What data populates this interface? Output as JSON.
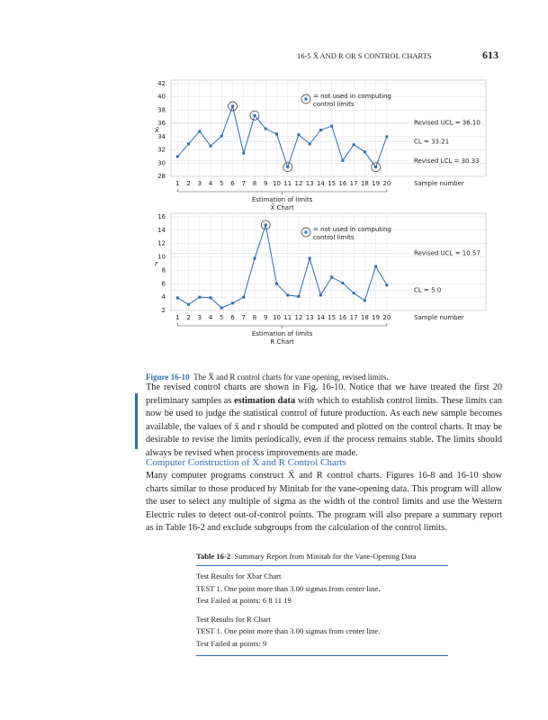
{
  "header": {
    "running_title": "16-5 X̄ AND R OR S CONTROL CHARTS",
    "page_number": "613"
  },
  "chart_data": [
    {
      "type": "line",
      "ylabel": "x̄",
      "xlabel": "Sample number",
      "color": "#2d6cb5",
      "x": [
        1,
        2,
        3,
        4,
        5,
        6,
        7,
        8,
        9,
        10,
        11,
        12,
        13,
        14,
        15,
        16,
        17,
        18,
        19,
        20
      ],
      "values": [
        31.0,
        32.9,
        34.8,
        32.6,
        34.1,
        38.6,
        31.5,
        37.2,
        35.2,
        34.4,
        29.4,
        34.3,
        32.9,
        35.0,
        35.6,
        30.4,
        32.8,
        31.7,
        29.4,
        34.0
      ],
      "xlim": [
        0.4,
        29
      ],
      "xticks": [
        1,
        2,
        3,
        4,
        5,
        6,
        7,
        8,
        9,
        10,
        11,
        12,
        13,
        14,
        15,
        16,
        17,
        18,
        19,
        20
      ],
      "ylim": [
        28,
        42
      ],
      "yticks": [
        28,
        30,
        32,
        34,
        36,
        38,
        40,
        42
      ],
      "grid": true,
      "circled_samples": [
        6,
        8,
        11,
        19
      ],
      "note": [
        "= not used in computing",
        "control limits"
      ],
      "control_limits": [
        {
          "label": "Revised UCL = 36.10",
          "value": 36.1
        },
        {
          "label": "CL = 33.21",
          "value": 33.21
        },
        {
          "label": "Revised LCL = 30.33",
          "value": 30.33
        }
      ],
      "span_label": "Estimation of limits",
      "chart_label": "X̄ Chart"
    },
    {
      "type": "line",
      "ylabel": "r",
      "xlabel": "Sample number",
      "color": "#2d6cb5",
      "x": [
        1,
        2,
        3,
        4,
        5,
        6,
        7,
        8,
        9,
        10,
        11,
        12,
        13,
        14,
        15,
        16,
        17,
        18,
        19,
        20
      ],
      "values": [
        3.9,
        2.9,
        4.0,
        3.9,
        2.4,
        3.1,
        4.0,
        9.8,
        14.8,
        6.0,
        4.3,
        4.1,
        9.8,
        4.3,
        7.0,
        6.1,
        4.6,
        3.5,
        8.6,
        5.8
      ],
      "xlim": [
        0.4,
        29
      ],
      "xticks": [
        1,
        2,
        3,
        4,
        5,
        6,
        7,
        8,
        9,
        10,
        11,
        12,
        13,
        14,
        15,
        16,
        17,
        18,
        19,
        20
      ],
      "ylim": [
        2,
        16
      ],
      "yticks": [
        2,
        4,
        6,
        8,
        10,
        12,
        14,
        16
      ],
      "grid": true,
      "circled_samples": [
        9
      ],
      "note": [
        "= not used in computing",
        "control limits"
      ],
      "control_limits": [
        {
          "label": "Revised UCL = 10.57",
          "value": 10.57
        },
        {
          "label": "CL = 5.0",
          "value": 5.0
        }
      ],
      "span_label": "Estimation of limits",
      "chart_label": "R Chart"
    }
  ],
  "figure_caption": {
    "label": "Figure 16-10",
    "text": "The X̄ and R control charts for vane opening, revised limits."
  },
  "paragraph_1": [
    {
      "text": "The revised control charts are shown in Fig. 16-10. Notice that we have treated the first 20 preliminary samples as "
    },
    {
      "text": "estimation data",
      "bold": true
    },
    {
      "text": " with which to establish control limits. These limits can now be used to judge the statistical control of future production. As each new sample becomes available, the values of x̄ and r should be computed and plotted on the control charts. It may be desirable to revise the limits periodically, even if the process remains stable. The limits should always be revised when process improvements are made."
    }
  ],
  "heading": "Computer Construction of X̄ and R Control Charts",
  "paragraph_2": [
    {
      "text": "Many computer programs construct X̄ and R control charts. Figures 16-8 and 16-10 show charts similar to those produced by Minitab for the vane-opening data. This program will allow the user to select any multiple of sigma as the width of the control limits and use the Western Electric rules to detect out-of-control points. The program will also prepare a summary report as in Table 16-2 and exclude subgroups from the calculation of the control limits."
    }
  ],
  "table": {
    "label": "Table 16-2",
    "title": "Summary Report from Minitab for the Vane-Opening Data",
    "groups": [
      [
        "Test Results for Xbar Chart",
        "TEST 1. One point more than 3.00 sigmas from center line.",
        "Test Failed at points: 6 8 11 19"
      ],
      [
        "Test Results for R Chart",
        "TEST 1. One point more than 3.00 sigmas from center line.",
        "Test Failed at points: 9"
      ]
    ]
  }
}
